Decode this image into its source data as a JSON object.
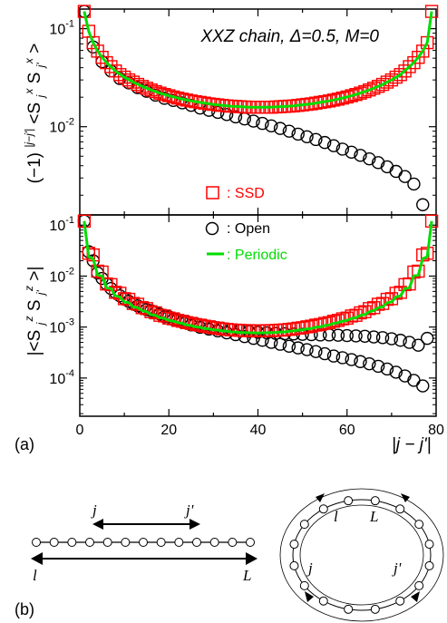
{
  "chart_data": [
    {
      "type": "scatter",
      "panel": "top",
      "title": "XXZ chain, Δ=0.5, M=0",
      "ylabel": "(−1)^{|j−j'|}<S^x_j S^x_j'>",
      "xlabel": "",
      "xlim": [
        0,
        80
      ],
      "ylim_log10": [
        -2.9,
        -0.8
      ],
      "y_scale": "log",
      "y_ticks": [
        {
          "label_base": "10",
          "label_exp": "-1",
          "value": 0.1
        },
        {
          "label_base": "10",
          "label_exp": "-2",
          "value": 0.01
        }
      ],
      "x_ticks": [],
      "series": [
        {
          "name": "SSD",
          "marker": "square",
          "color": "#ff0000",
          "x": [
            1,
            2,
            3,
            4,
            5,
            6,
            7,
            8,
            9,
            10,
            11,
            12,
            13,
            14,
            15,
            16,
            17,
            18,
            19,
            20,
            21,
            22,
            23,
            24,
            25,
            26,
            27,
            28,
            29,
            30,
            31,
            32,
            33,
            34,
            35,
            36,
            37,
            38,
            39,
            40,
            41,
            42,
            43,
            44,
            45,
            46,
            47,
            48,
            49,
            50,
            51,
            52,
            53,
            54,
            55,
            56,
            57,
            58,
            59,
            60,
            61,
            62,
            63,
            64,
            65,
            66,
            67,
            68,
            69,
            70,
            71,
            72,
            73,
            74,
            75,
            76,
            77,
            78,
            79
          ],
          "y": [
            0.15,
            0.094,
            0.072,
            0.059,
            0.051,
            0.045,
            0.041,
            0.037,
            0.034,
            0.032,
            0.03,
            0.0285,
            0.027,
            0.0258,
            0.0247,
            0.0237,
            0.0228,
            0.022,
            0.0213,
            0.0207,
            0.0201,
            0.0196,
            0.0191,
            0.0187,
            0.0183,
            0.018,
            0.0177,
            0.0174,
            0.0171,
            0.0169,
            0.0167,
            0.0165,
            0.0163,
            0.0162,
            0.0161,
            0.016,
            0.0159,
            0.0158,
            0.0158,
            0.0158,
            0.0158,
            0.0158,
            0.0158,
            0.0159,
            0.016,
            0.0161,
            0.0162,
            0.0163,
            0.0165,
            0.0167,
            0.0169,
            0.0171,
            0.0174,
            0.0177,
            0.018,
            0.0183,
            0.0187,
            0.0191,
            0.0196,
            0.0201,
            0.0207,
            0.0213,
            0.022,
            0.0228,
            0.0237,
            0.0247,
            0.0258,
            0.027,
            0.0285,
            0.03,
            0.032,
            0.034,
            0.037,
            0.041,
            0.045,
            0.051,
            0.059,
            0.072,
            0.15
          ]
        },
        {
          "name": "Open",
          "marker": "circle",
          "color": "#000000",
          "x": [
            1,
            3,
            5,
            7,
            9,
            11,
            13,
            15,
            17,
            19,
            21,
            23,
            25,
            27,
            29,
            31,
            33,
            35,
            37,
            39,
            41,
            43,
            45,
            47,
            49,
            51,
            53,
            55,
            57,
            59,
            61,
            63,
            65,
            67,
            69,
            71,
            73,
            75,
            77
          ],
          "y": [
            0.15,
            0.065,
            0.046,
            0.037,
            0.031,
            0.028,
            0.025,
            0.023,
            0.021,
            0.0195,
            0.0185,
            0.0175,
            0.0165,
            0.0155,
            0.0147,
            0.014,
            0.0133,
            0.0126,
            0.012,
            0.0114,
            0.0108,
            0.0102,
            0.0096,
            0.009,
            0.0084,
            0.0079,
            0.0074,
            0.0069,
            0.0064,
            0.0059,
            0.0055,
            0.0051,
            0.0047,
            0.0043,
            0.0039,
            0.0035,
            0.0031,
            0.0026,
            0.0016
          ]
        },
        {
          "name": "Periodic",
          "marker": "line",
          "color": "#00dd00",
          "x": [
            1,
            2,
            3,
            4,
            5,
            6,
            8,
            10,
            12,
            14,
            16,
            18,
            20,
            22,
            24,
            26,
            28,
            30,
            32,
            34,
            36,
            38,
            40,
            42,
            44,
            46,
            48,
            50,
            52,
            54,
            56,
            58,
            60,
            62,
            64,
            66,
            68,
            70,
            72,
            74,
            75,
            76,
            77,
            78,
            79
          ],
          "y": [
            0.15,
            0.094,
            0.072,
            0.059,
            0.051,
            0.045,
            0.037,
            0.032,
            0.0285,
            0.0258,
            0.0237,
            0.022,
            0.0207,
            0.0196,
            0.0187,
            0.018,
            0.0174,
            0.0169,
            0.0165,
            0.0162,
            0.016,
            0.0158,
            0.0158,
            0.0158,
            0.0159,
            0.0161,
            0.0163,
            0.0167,
            0.0171,
            0.0177,
            0.0183,
            0.0191,
            0.0201,
            0.0213,
            0.0228,
            0.0247,
            0.027,
            0.03,
            0.034,
            0.041,
            0.045,
            0.051,
            0.059,
            0.072,
            0.15
          ]
        }
      ]
    },
    {
      "type": "scatter",
      "panel": "bottom",
      "title": "",
      "ylabel": "|<S^z_j S^z_j'>|",
      "xlabel": "|j − j'|",
      "xlim": [
        0,
        80
      ],
      "ylim_log10": [
        -4.75,
        -0.8
      ],
      "y_scale": "log",
      "y_ticks": [
        {
          "label_base": "10",
          "label_exp": "-1",
          "value": 0.1
        },
        {
          "label_base": "10",
          "label_exp": "-2",
          "value": 0.01
        },
        {
          "label_base": "10",
          "label_exp": "-3",
          "value": 0.001
        },
        {
          "label_base": "10",
          "label_exp": "-4",
          "value": 0.0001
        }
      ],
      "x_ticks": [
        {
          "label": "0",
          "value": 0
        },
        {
          "label": "20",
          "value": 20
        },
        {
          "label": "40",
          "value": 40
        },
        {
          "label": "60",
          "value": 60
        },
        {
          "label": "80",
          "value": 80
        }
      ],
      "series": [
        {
          "name": "SSD",
          "marker": "square",
          "color": "#ff0000",
          "x": [
            1,
            2,
            3,
            4,
            5,
            6,
            7,
            8,
            9,
            10,
            11,
            12,
            13,
            14,
            15,
            16,
            17,
            18,
            19,
            20,
            21,
            22,
            23,
            24,
            25,
            26,
            27,
            28,
            29,
            30,
            31,
            32,
            33,
            34,
            35,
            36,
            37,
            38,
            39,
            40,
            41,
            42,
            43,
            44,
            45,
            46,
            47,
            48,
            49,
            50,
            51,
            52,
            53,
            54,
            55,
            56,
            57,
            58,
            59,
            60,
            61,
            62,
            63,
            64,
            65,
            66,
            67,
            68,
            69,
            70,
            71,
            72,
            73,
            74,
            75,
            76,
            77,
            78,
            79
          ],
          "y": [
            0.12,
            0.028,
            0.026,
            0.0125,
            0.012,
            0.007,
            0.0068,
            0.0048,
            0.0046,
            0.0036,
            0.0035,
            0.0029,
            0.0028,
            0.0024,
            0.0023,
            0.002,
            0.0019,
            0.0017,
            0.00165,
            0.0015,
            0.00145,
            0.00135,
            0.0013,
            0.00122,
            0.00118,
            0.00112,
            0.00109,
            0.00104,
            0.00101,
            0.00097,
            0.00095,
            0.00092,
            0.0009,
            0.00088,
            0.00087,
            0.00086,
            0.00085,
            0.00085,
            0.00084,
            0.00084,
            0.00084,
            0.00085,
            0.00085,
            0.00086,
            0.00087,
            0.00088,
            0.0009,
            0.00092,
            0.00095,
            0.00097,
            0.00101,
            0.00104,
            0.00109,
            0.00112,
            0.00118,
            0.00122,
            0.0013,
            0.00135,
            0.00145,
            0.0015,
            0.00165,
            0.0017,
            0.0019,
            0.002,
            0.0023,
            0.0024,
            0.0028,
            0.0029,
            0.0035,
            0.0036,
            0.0046,
            0.0048,
            0.0068,
            0.007,
            0.012,
            0.0125,
            0.026,
            0.028,
            0.12
          ]
        },
        {
          "name": "Open",
          "marker": "circle",
          "color": "#000000",
          "x": [
            1,
            3,
            5,
            7,
            9,
            11,
            13,
            15,
            17,
            19,
            21,
            23,
            25,
            27,
            29,
            31,
            33,
            35,
            37,
            39,
            41,
            43,
            45,
            47,
            49,
            51,
            53,
            55,
            57,
            59,
            61,
            63,
            65,
            67,
            69,
            71,
            73,
            75,
            77,
            2,
            4,
            6,
            8,
            10,
            12,
            14,
            16,
            18,
            20,
            22,
            24,
            26,
            28,
            30,
            32,
            34,
            36,
            38,
            40,
            42,
            44,
            46,
            48,
            50,
            52,
            54,
            56,
            58,
            60,
            62,
            64,
            66,
            68,
            70,
            72,
            74,
            76,
            78
          ],
          "y": [
            0.12,
            0.02,
            0.009,
            0.0057,
            0.0041,
            0.0032,
            0.0026,
            0.0022,
            0.0019,
            0.0016,
            0.0014,
            0.00125,
            0.0011,
            0.00099,
            0.00091,
            0.00084,
            0.00077,
            0.00071,
            0.00065,
            0.0006,
            0.00055,
            0.0005,
            0.00046,
            0.00042,
            0.00039,
            0.00036,
            0.00033,
            0.0003,
            0.00027,
            0.00025,
            0.00023,
            0.00021,
            0.00019,
            0.00017,
            0.00015,
            0.00013,
            0.00011,
            9e-05,
            7e-05,
            0.03,
            0.0115,
            0.007,
            0.0048,
            0.0036,
            0.0029,
            0.0024,
            0.0021,
            0.0018,
            0.0016,
            0.0014,
            0.00128,
            0.00117,
            0.00108,
            0.00101,
            0.00095,
            0.0009,
            0.00086,
            0.00082,
            0.00079,
            0.00077,
            0.00075,
            0.00074,
            0.00073,
            0.00072,
            0.00071,
            0.0007,
            0.0007,
            0.00069,
            0.00068,
            0.00067,
            0.00066,
            0.00064,
            0.00062,
            0.00059,
            0.00055,
            0.0005,
            0.00044,
            0.0006
          ]
        },
        {
          "name": "Periodic",
          "marker": "line",
          "color": "#00dd00",
          "x": [
            1,
            2,
            3,
            4,
            5,
            6,
            7,
            8,
            9,
            10,
            11,
            12,
            13,
            14,
            15,
            16,
            17,
            18,
            19,
            20,
            21,
            22,
            23,
            24,
            25,
            26,
            27,
            28,
            29,
            30,
            31,
            32,
            33,
            34,
            35,
            36,
            37,
            38,
            39,
            40,
            41,
            42,
            43,
            44,
            45,
            46,
            47,
            48,
            49,
            50,
            51,
            52,
            53,
            54,
            55,
            56,
            57,
            58,
            59,
            60,
            61,
            62,
            63,
            64,
            65,
            66,
            67,
            68,
            69,
            70,
            71,
            72,
            73,
            74,
            75,
            76,
            77,
            78,
            79
          ],
          "y": [
            0.12,
            0.024,
            0.022,
            0.0105,
            0.0101,
            0.0059,
            0.0057,
            0.0041,
            0.0039,
            0.0031,
            0.003,
            0.0025,
            0.0024,
            0.0021,
            0.002,
            0.00175,
            0.0017,
            0.00152,
            0.00148,
            0.00135,
            0.00131,
            0.00122,
            0.00118,
            0.0011,
            0.00107,
            0.00101,
            0.00099,
            0.00094,
            0.00092,
            0.00088,
            0.00087,
            0.00084,
            0.00083,
            0.0008,
            0.0008,
            0.00078,
            0.00078,
            0.00077,
            0.00077,
            0.00076,
            0.00077,
            0.00077,
            0.00078,
            0.00078,
            0.0008,
            0.0008,
            0.00083,
            0.00084,
            0.00087,
            0.00088,
            0.00092,
            0.00094,
            0.00099,
            0.00101,
            0.00107,
            0.0011,
            0.00118,
            0.00122,
            0.00131,
            0.00135,
            0.00148,
            0.00152,
            0.0017,
            0.00175,
            0.002,
            0.0021,
            0.0024,
            0.0025,
            0.003,
            0.0031,
            0.0039,
            0.0041,
            0.0057,
            0.0059,
            0.0101,
            0.0105,
            0.022,
            0.024,
            0.12
          ]
        }
      ]
    }
  ],
  "legend": {
    "items": [
      {
        "marker": "square",
        "label": ": SSD",
        "color": "#ff0000"
      },
      {
        "marker": "circle",
        "label": ": Open",
        "color": "#000000"
      },
      {
        "marker": "line",
        "label": ": Periodic",
        "color": "#00dd00"
      }
    ]
  },
  "panel_labels": {
    "a": "(a)",
    "b": "(b)"
  },
  "diagram": {
    "open_chain": {
      "site_count": 13,
      "labels": {
        "j": "j",
        "jp": "j'",
        "start": "l",
        "end": "L"
      }
    },
    "ring": {
      "site_count": 16,
      "labels": {
        "start": "l",
        "end": "L",
        "j": "j",
        "jp": "j'"
      }
    }
  }
}
